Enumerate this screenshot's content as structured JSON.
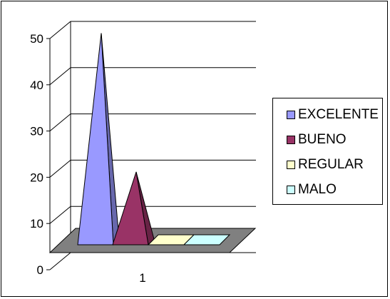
{
  "chart_data": {
    "type": "bar",
    "subtype": "3d-pyramid",
    "categories": [
      "1"
    ],
    "series": [
      {
        "name": "EXCELENTE",
        "values": [
          49
        ],
        "color": "#9999ff"
      },
      {
        "name": "BUENO",
        "values": [
          19
        ],
        "color": "#993366"
      },
      {
        "name": "REGULAR",
        "values": [
          0
        ],
        "color": "#ffffcc"
      },
      {
        "name": "MALO",
        "values": [
          0
        ],
        "color": "#ccffff"
      }
    ],
    "y_ticks": [
      "0",
      "10",
      "20",
      "30",
      "40",
      "50"
    ],
    "ylim": [
      0,
      50
    ],
    "grid": true,
    "legend_position": "right",
    "floor_color": "#808080",
    "title": "",
    "xlabel": "",
    "ylabel": ""
  }
}
